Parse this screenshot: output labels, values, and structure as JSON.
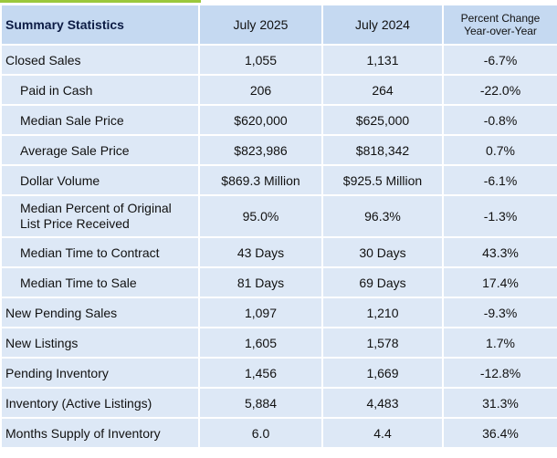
{
  "header": {
    "title": "Summary Statistics",
    "col1": "July 2025",
    "col2": "July 2024",
    "col3_line1": "Percent Change",
    "col3_line2": "Year-over-Year"
  },
  "rows": [
    {
      "label": "Closed Sales",
      "jul2025": "1,055",
      "jul2024": "1,131",
      "change": "-6.7%"
    },
    {
      "label": "Paid in Cash",
      "jul2025": "206",
      "jul2024": "264",
      "change": "-22.0%"
    },
    {
      "label": "Median Sale Price",
      "jul2025": "$620,000",
      "jul2024": "$625,000",
      "change": "-0.8%"
    },
    {
      "label": "Average Sale Price",
      "jul2025": "$823,986",
      "jul2024": "$818,342",
      "change": "0.7%"
    },
    {
      "label": "Dollar Volume",
      "jul2025": "$869.3 Million",
      "jul2024": "$925.5 Million",
      "change": "-6.1%"
    },
    {
      "label_line1": "Median Percent of Original",
      "label_line2": "List Price Received",
      "jul2025": "95.0%",
      "jul2024": "96.3%",
      "change": "-1.3%"
    },
    {
      "label": "Median Time to Contract",
      "jul2025": "43 Days",
      "jul2024": "30 Days",
      "change": "43.3%"
    },
    {
      "label": "Median Time to Sale",
      "jul2025": "81 Days",
      "jul2024": "69 Days",
      "change": "17.4%"
    },
    {
      "label": "New Pending Sales",
      "jul2025": "1,097",
      "jul2024": "1,210",
      "change": "-9.3%"
    },
    {
      "label": "New Listings",
      "jul2025": "1,605",
      "jul2024": "1,578",
      "change": "1.7%"
    },
    {
      "label": "Pending Inventory",
      "jul2025": "1,456",
      "jul2024": "1,669",
      "change": "-12.8%"
    },
    {
      "label": "Inventory (Active Listings)",
      "jul2025": "5,884",
      "jul2024": "4,483",
      "change": "31.3%"
    },
    {
      "label": "Months Supply of Inventory",
      "jul2025": "6.0",
      "jul2024": "4.4",
      "change": "36.4%"
    }
  ],
  "colors": {
    "header_bg": "#c5d9f1",
    "row_bg": "#dde8f6",
    "accent": "#9bc83c",
    "title_text": "#0c1b44"
  }
}
